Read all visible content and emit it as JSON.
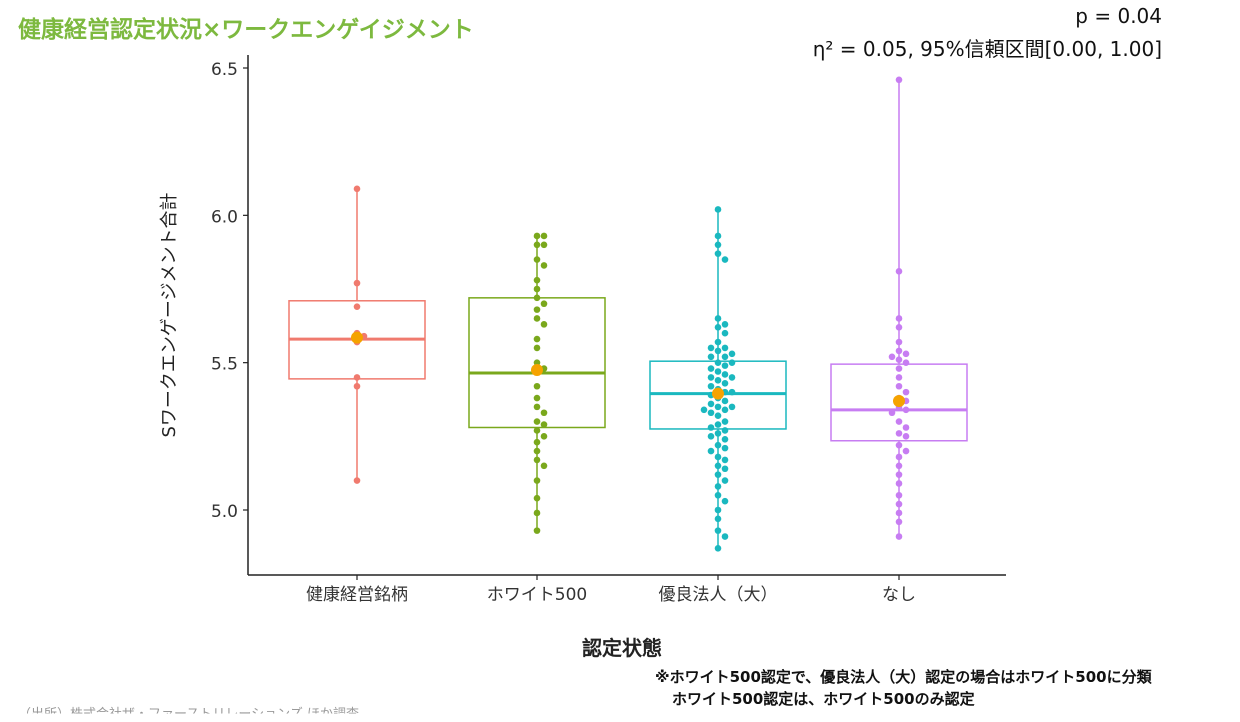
{
  "header": {
    "title": "健康経営認定状況×ワークエンゲイジメント",
    "p_text": "p = 0.04",
    "eta_text": "η²  = 0.05, 95%信頼区間[0.00, 1.00]"
  },
  "footer": {
    "note1": "※ホワイト500認定で、優良法人（大）認定の場合はホワイト500に分類",
    "note2": "ホワイト500認定は、ホワイト500のみ認定",
    "source": "（出所）株式会社ザ・ファーストリレーションズ ほか調査"
  },
  "chart_data": {
    "type": "box",
    "title": "",
    "xlabel": "認定状態",
    "ylabel": "Sワークエンゲージメント合計",
    "ylim": [
      4.8,
      6.55
    ],
    "yticks": [
      5.0,
      5.5,
      6.0,
      6.5
    ],
    "ytick_labels": [
      "5.0",
      "5.5",
      "6.0",
      "6.5"
    ],
    "categories": [
      "健康経営銘柄",
      "ホワイト500",
      "優良法人（大）",
      "なし"
    ],
    "mean_color": "#f5a300",
    "series": [
      {
        "name": "健康経営銘柄",
        "color": "#f07a6e",
        "min": 5.1,
        "q1": 5.445,
        "median": 5.58,
        "q3": 5.71,
        "max": 6.09,
        "mean": 5.585,
        "points": [
          6.09,
          5.77,
          5.69,
          5.6,
          5.59,
          5.57,
          5.45,
          5.42,
          5.1
        ]
      },
      {
        "name": "ホワイト500",
        "color": "#7aa81c",
        "min": 4.93,
        "q1": 5.28,
        "median": 5.465,
        "q3": 5.72,
        "max": 5.93,
        "mean": 5.475,
        "points": [
          5.93,
          5.93,
          5.9,
          5.9,
          5.85,
          5.83,
          5.78,
          5.75,
          5.72,
          5.7,
          5.68,
          5.65,
          5.63,
          5.58,
          5.55,
          5.5,
          5.48,
          5.47,
          5.42,
          5.38,
          5.35,
          5.33,
          5.3,
          5.29,
          5.27,
          5.25,
          5.23,
          5.2,
          5.17,
          5.15,
          5.1,
          5.04,
          4.99,
          4.93
        ]
      },
      {
        "name": "優良法人（大）",
        "color": "#1ab8bf",
        "min": 4.87,
        "q1": 5.275,
        "median": 5.395,
        "q3": 5.505,
        "max": 6.02,
        "mean": 5.395,
        "points": [
          6.02,
          5.93,
          5.9,
          5.87,
          5.85,
          5.65,
          5.63,
          5.62,
          5.6,
          5.57,
          5.55,
          5.55,
          5.54,
          5.53,
          5.52,
          5.52,
          5.5,
          5.5,
          5.49,
          5.48,
          5.47,
          5.46,
          5.45,
          5.45,
          5.44,
          5.43,
          5.42,
          5.41,
          5.4,
          5.4,
          5.39,
          5.38,
          5.37,
          5.36,
          5.35,
          5.35,
          5.34,
          5.34,
          5.33,
          5.32,
          5.3,
          5.29,
          5.28,
          5.27,
          5.26,
          5.25,
          5.24,
          5.22,
          5.21,
          5.2,
          5.18,
          5.17,
          5.15,
          5.14,
          5.12,
          5.1,
          5.08,
          5.05,
          5.03,
          5.0,
          4.97,
          4.93,
          4.91,
          4.87
        ]
      },
      {
        "name": "なし",
        "color": "#c77df2",
        "min": 4.91,
        "q1": 5.235,
        "median": 5.34,
        "q3": 5.495,
        "max": 6.46,
        "mean": 5.37,
        "points": [
          6.46,
          5.81,
          5.65,
          5.62,
          5.57,
          5.54,
          5.53,
          5.52,
          5.51,
          5.5,
          5.48,
          5.45,
          5.42,
          5.4,
          5.38,
          5.37,
          5.35,
          5.34,
          5.33,
          5.3,
          5.28,
          5.26,
          5.25,
          5.22,
          5.2,
          5.18,
          5.15,
          5.12,
          5.09,
          5.05,
          5.02,
          4.99,
          4.96,
          4.91
        ]
      }
    ]
  }
}
